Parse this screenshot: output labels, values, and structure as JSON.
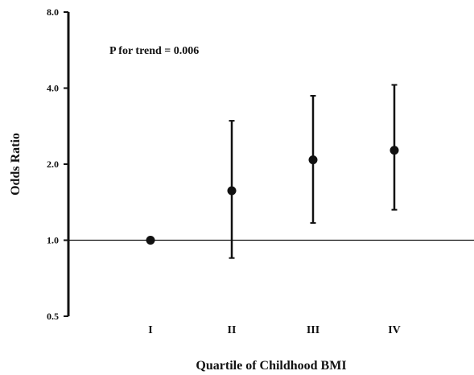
{
  "chart_data": {
    "type": "scatter",
    "title": "",
    "xlabel": "Quartile of Childhood BMI",
    "ylabel": "Odds Ratio",
    "y_scale": "log2",
    "ylim": [
      0.5,
      8.0
    ],
    "y_ticks": [
      "8.0",
      "4.0",
      "2.0",
      "1.0",
      "0.5"
    ],
    "y_tick_values": [
      8.0,
      4.0,
      2.0,
      1.0,
      0.5
    ],
    "categories": [
      "I",
      "II",
      "III",
      "IV"
    ],
    "series": [
      {
        "values": [
          1.0,
          1.57,
          2.08,
          2.27
        ],
        "lower": [
          1.0,
          0.85,
          1.17,
          1.32
        ],
        "upper": [
          1.0,
          2.97,
          3.73,
          4.12
        ]
      }
    ],
    "reference_line": 1.0,
    "annotation": "P for trend = 0.006",
    "grid": false,
    "legend": "none"
  }
}
